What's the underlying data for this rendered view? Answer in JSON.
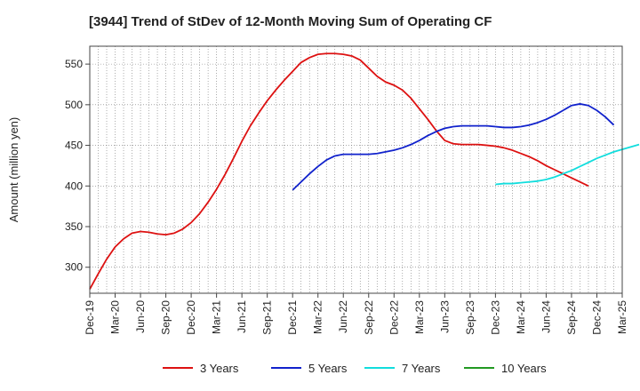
{
  "chart_data": {
    "type": "line",
    "title": "[3944]  Trend of StDev of 12-Month Moving Sum of Operating CF",
    "xlabel": "",
    "ylabel": "Amount (million yen)",
    "ylim": [
      268,
      572
    ],
    "yticks": [
      300,
      350,
      400,
      450,
      500,
      550
    ],
    "x_start": "Dec-19",
    "x_ticks": [
      "Dec-19",
      "Mar-20",
      "Jun-20",
      "Sep-20",
      "Dec-20",
      "Mar-21",
      "Jun-21",
      "Sep-21",
      "Dec-21",
      "Mar-22",
      "Jun-22",
      "Sep-22",
      "Dec-22",
      "Mar-23",
      "Jun-23",
      "Sep-23",
      "Dec-23",
      "Mar-24",
      "Jun-24",
      "Sep-24",
      "Dec-24",
      "Mar-25"
    ],
    "grid": true,
    "legend_position": "bottom",
    "series": [
      {
        "name": "3 Years",
        "color": "#dd1111",
        "start_month": "Dec-19",
        "values": [
          273,
          292,
          310,
          325,
          335,
          342,
          344,
          343,
          341,
          340,
          342,
          347,
          355,
          366,
          380,
          396,
          414,
          434,
          455,
          474,
          490,
          505,
          518,
          530,
          541,
          552,
          558,
          562,
          563,
          563,
          562,
          560,
          555,
          545,
          535,
          528,
          524,
          518,
          508,
          495,
          482,
          468,
          456,
          452,
          451,
          451,
          451,
          450,
          449,
          447,
          444,
          440,
          436,
          431,
          425,
          420,
          415,
          410,
          405,
          400
        ]
      },
      {
        "name": "5 Years",
        "color": "#1122cc",
        "start_month": "Dec-21",
        "values": [
          395,
          405,
          415,
          424,
          432,
          437,
          439,
          439,
          439,
          439,
          440,
          442,
          444,
          447,
          451,
          456,
          462,
          467,
          471,
          473,
          474,
          474,
          474,
          474,
          473,
          472,
          472,
          473,
          475,
          478,
          482,
          487,
          493,
          499,
          501,
          499,
          493,
          485,
          475
        ]
      },
      {
        "name": "7 Years",
        "color": "#11dddd",
        "start_month": "Dec-23",
        "values": [
          402,
          403,
          403,
          404,
          405,
          406,
          408,
          411,
          415,
          419,
          424,
          429,
          434,
          438,
          442,
          445,
          448,
          451
        ]
      },
      {
        "name": "10 Years",
        "color": "#229922",
        "start_month": "Dec-19",
        "values": []
      }
    ]
  }
}
